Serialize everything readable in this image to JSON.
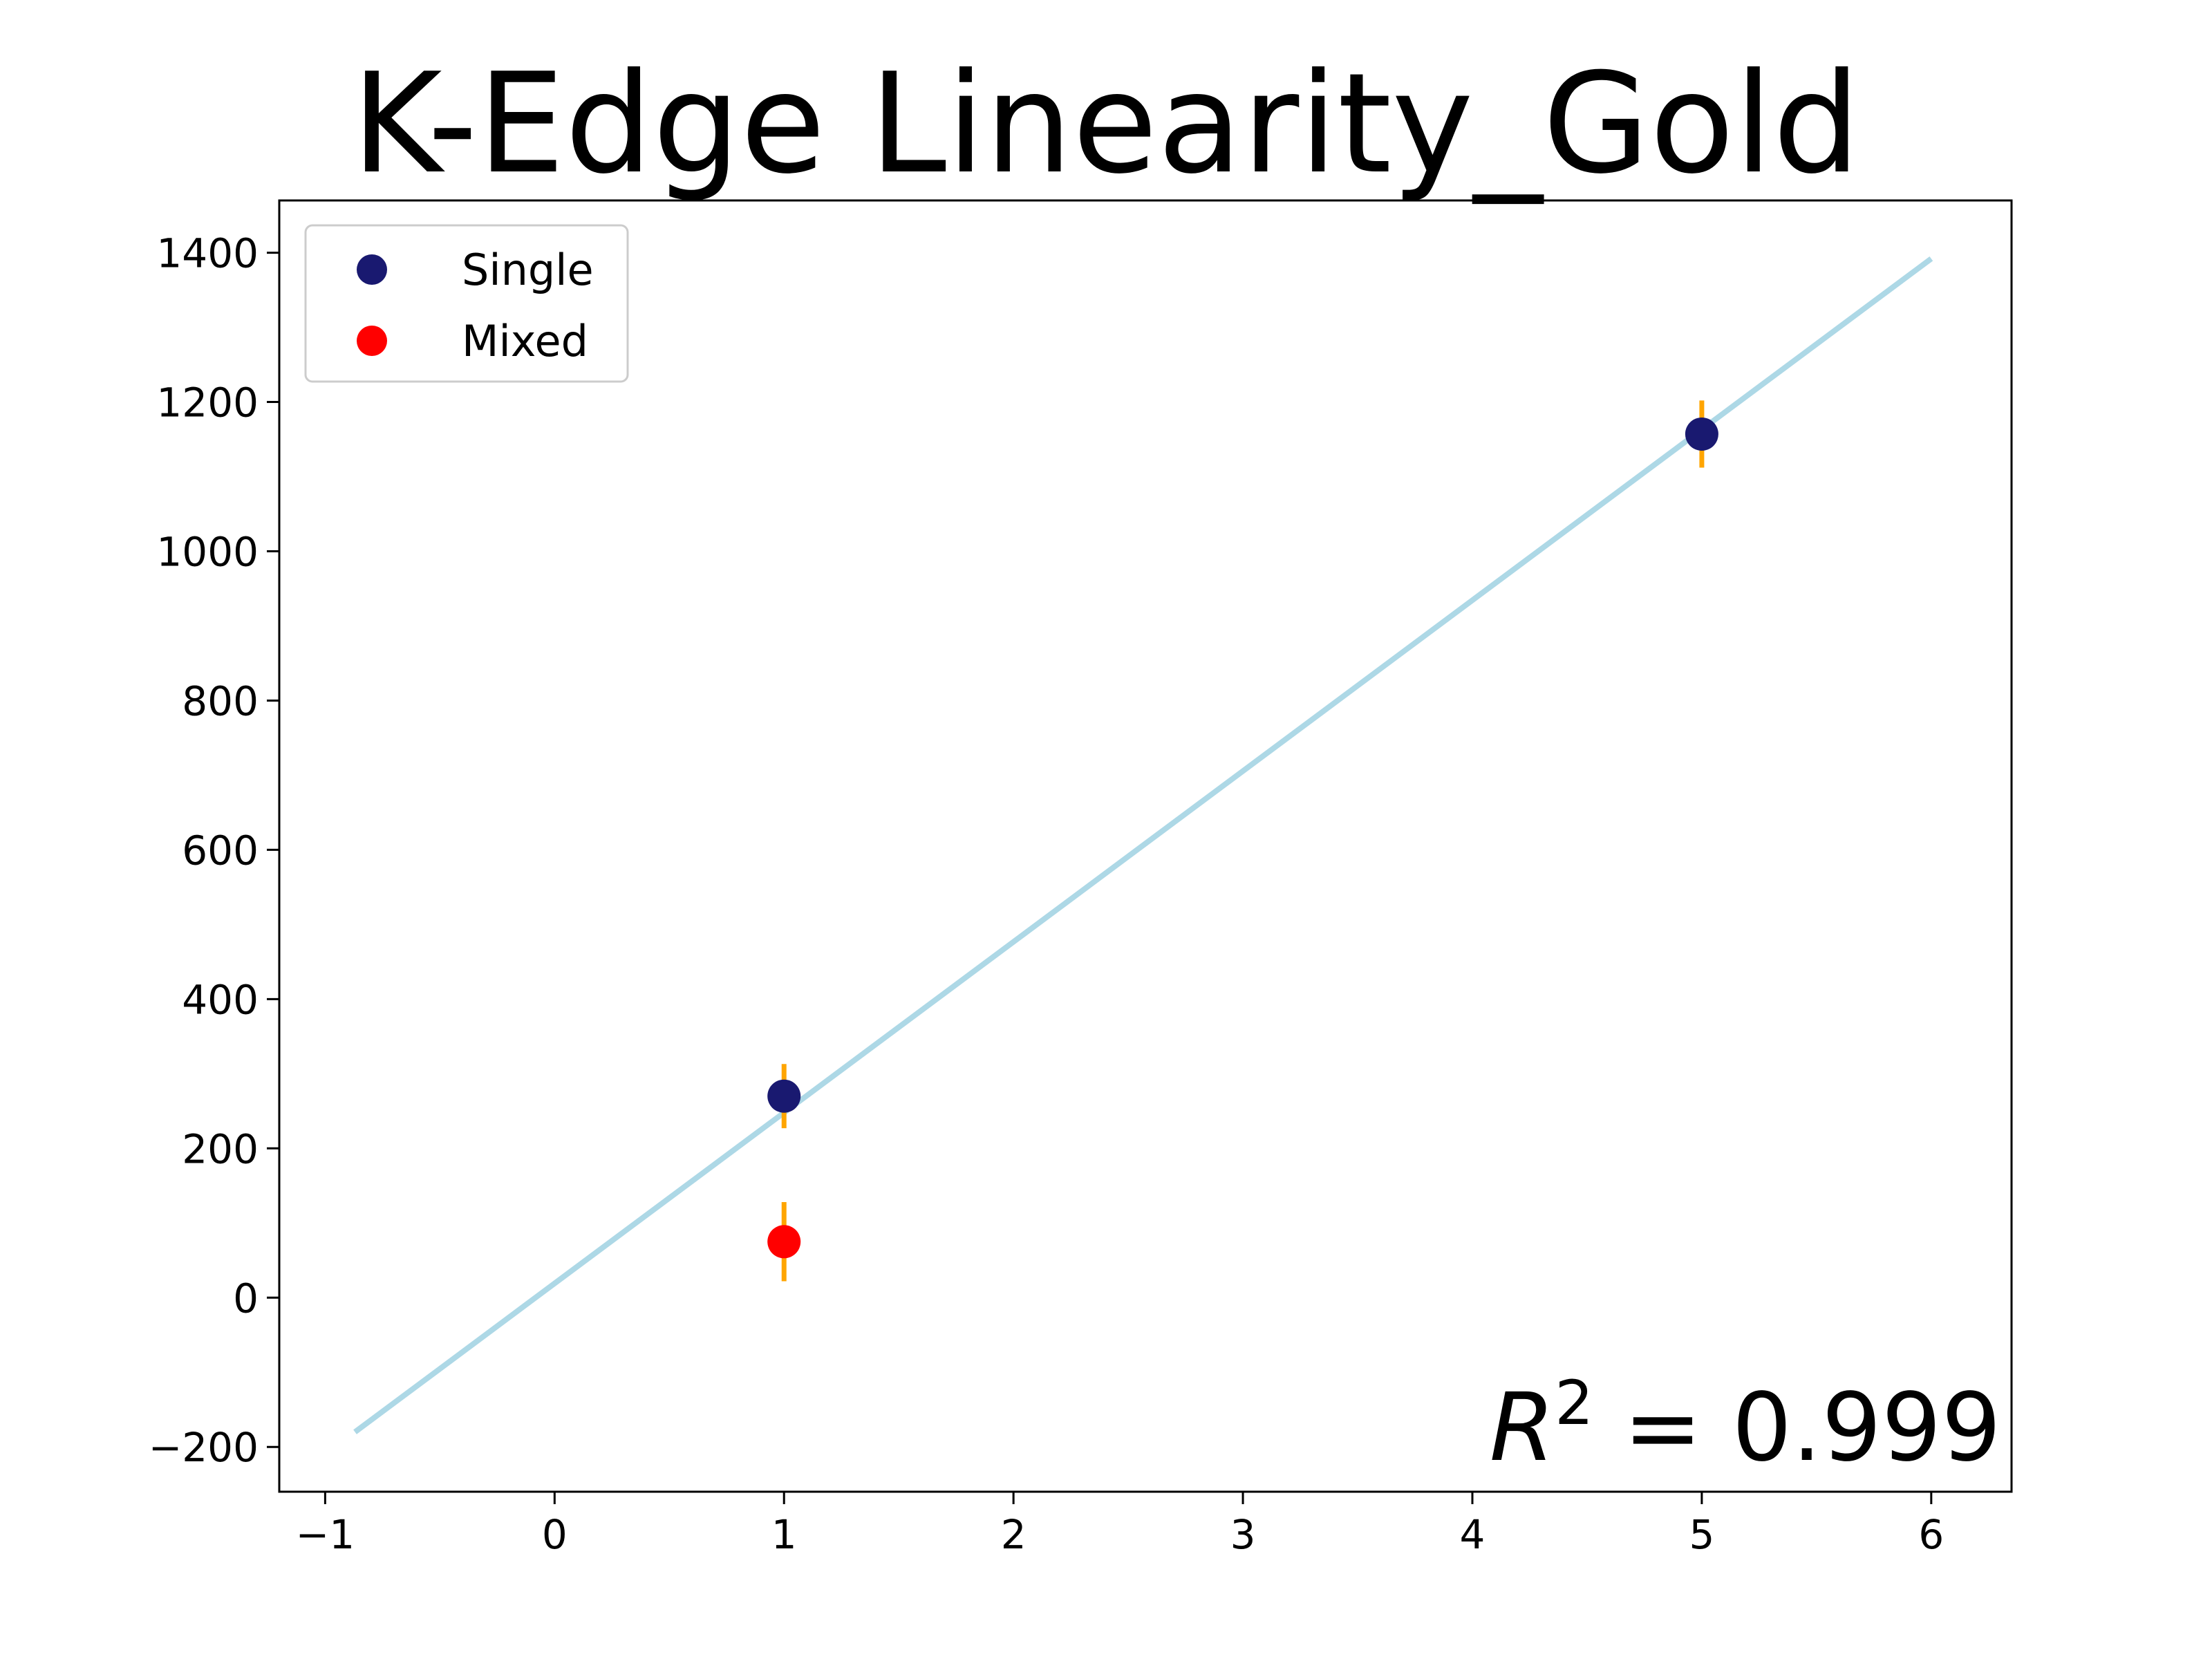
{
  "chart_data": {
    "type": "scatter",
    "title": "K-Edge Linearity_Gold",
    "xlabel": "",
    "ylabel": "",
    "xlim": [
      -1.2,
      6.35
    ],
    "ylim": [
      -260,
      1470
    ],
    "xticks": [
      -1,
      0,
      1,
      2,
      3,
      4,
      5,
      6
    ],
    "xtick_labels": [
      "−1",
      "0",
      "1",
      "2",
      "3",
      "4",
      "5",
      "6"
    ],
    "yticks": [
      -200,
      0,
      200,
      400,
      600,
      800,
      1000,
      1200,
      1400
    ],
    "ytick_labels": [
      "−200",
      "0",
      "200",
      "400",
      "600",
      "800",
      "1000",
      "1200",
      "1400"
    ],
    "grid": false,
    "legend_position": "upper-left",
    "series": [
      {
        "name": "Single",
        "color": "#191970",
        "points": [
          {
            "x": 1,
            "y": 270,
            "err": 43
          },
          {
            "x": 5,
            "y": 1157,
            "err": 45
          }
        ]
      },
      {
        "name": "Mixed",
        "color": "#ff0000",
        "points": [
          {
            "x": 1,
            "y": 75,
            "err": 53
          }
        ]
      }
    ],
    "errorbar_color": "#ffa500",
    "fit_line": {
      "color": "#add8e6",
      "x": [
        -0.87,
        6.0
      ],
      "y": [
        -180,
        1392
      ]
    },
    "annotation": {
      "base": "R",
      "sup": "2",
      "rest": " = 0.999"
    }
  }
}
